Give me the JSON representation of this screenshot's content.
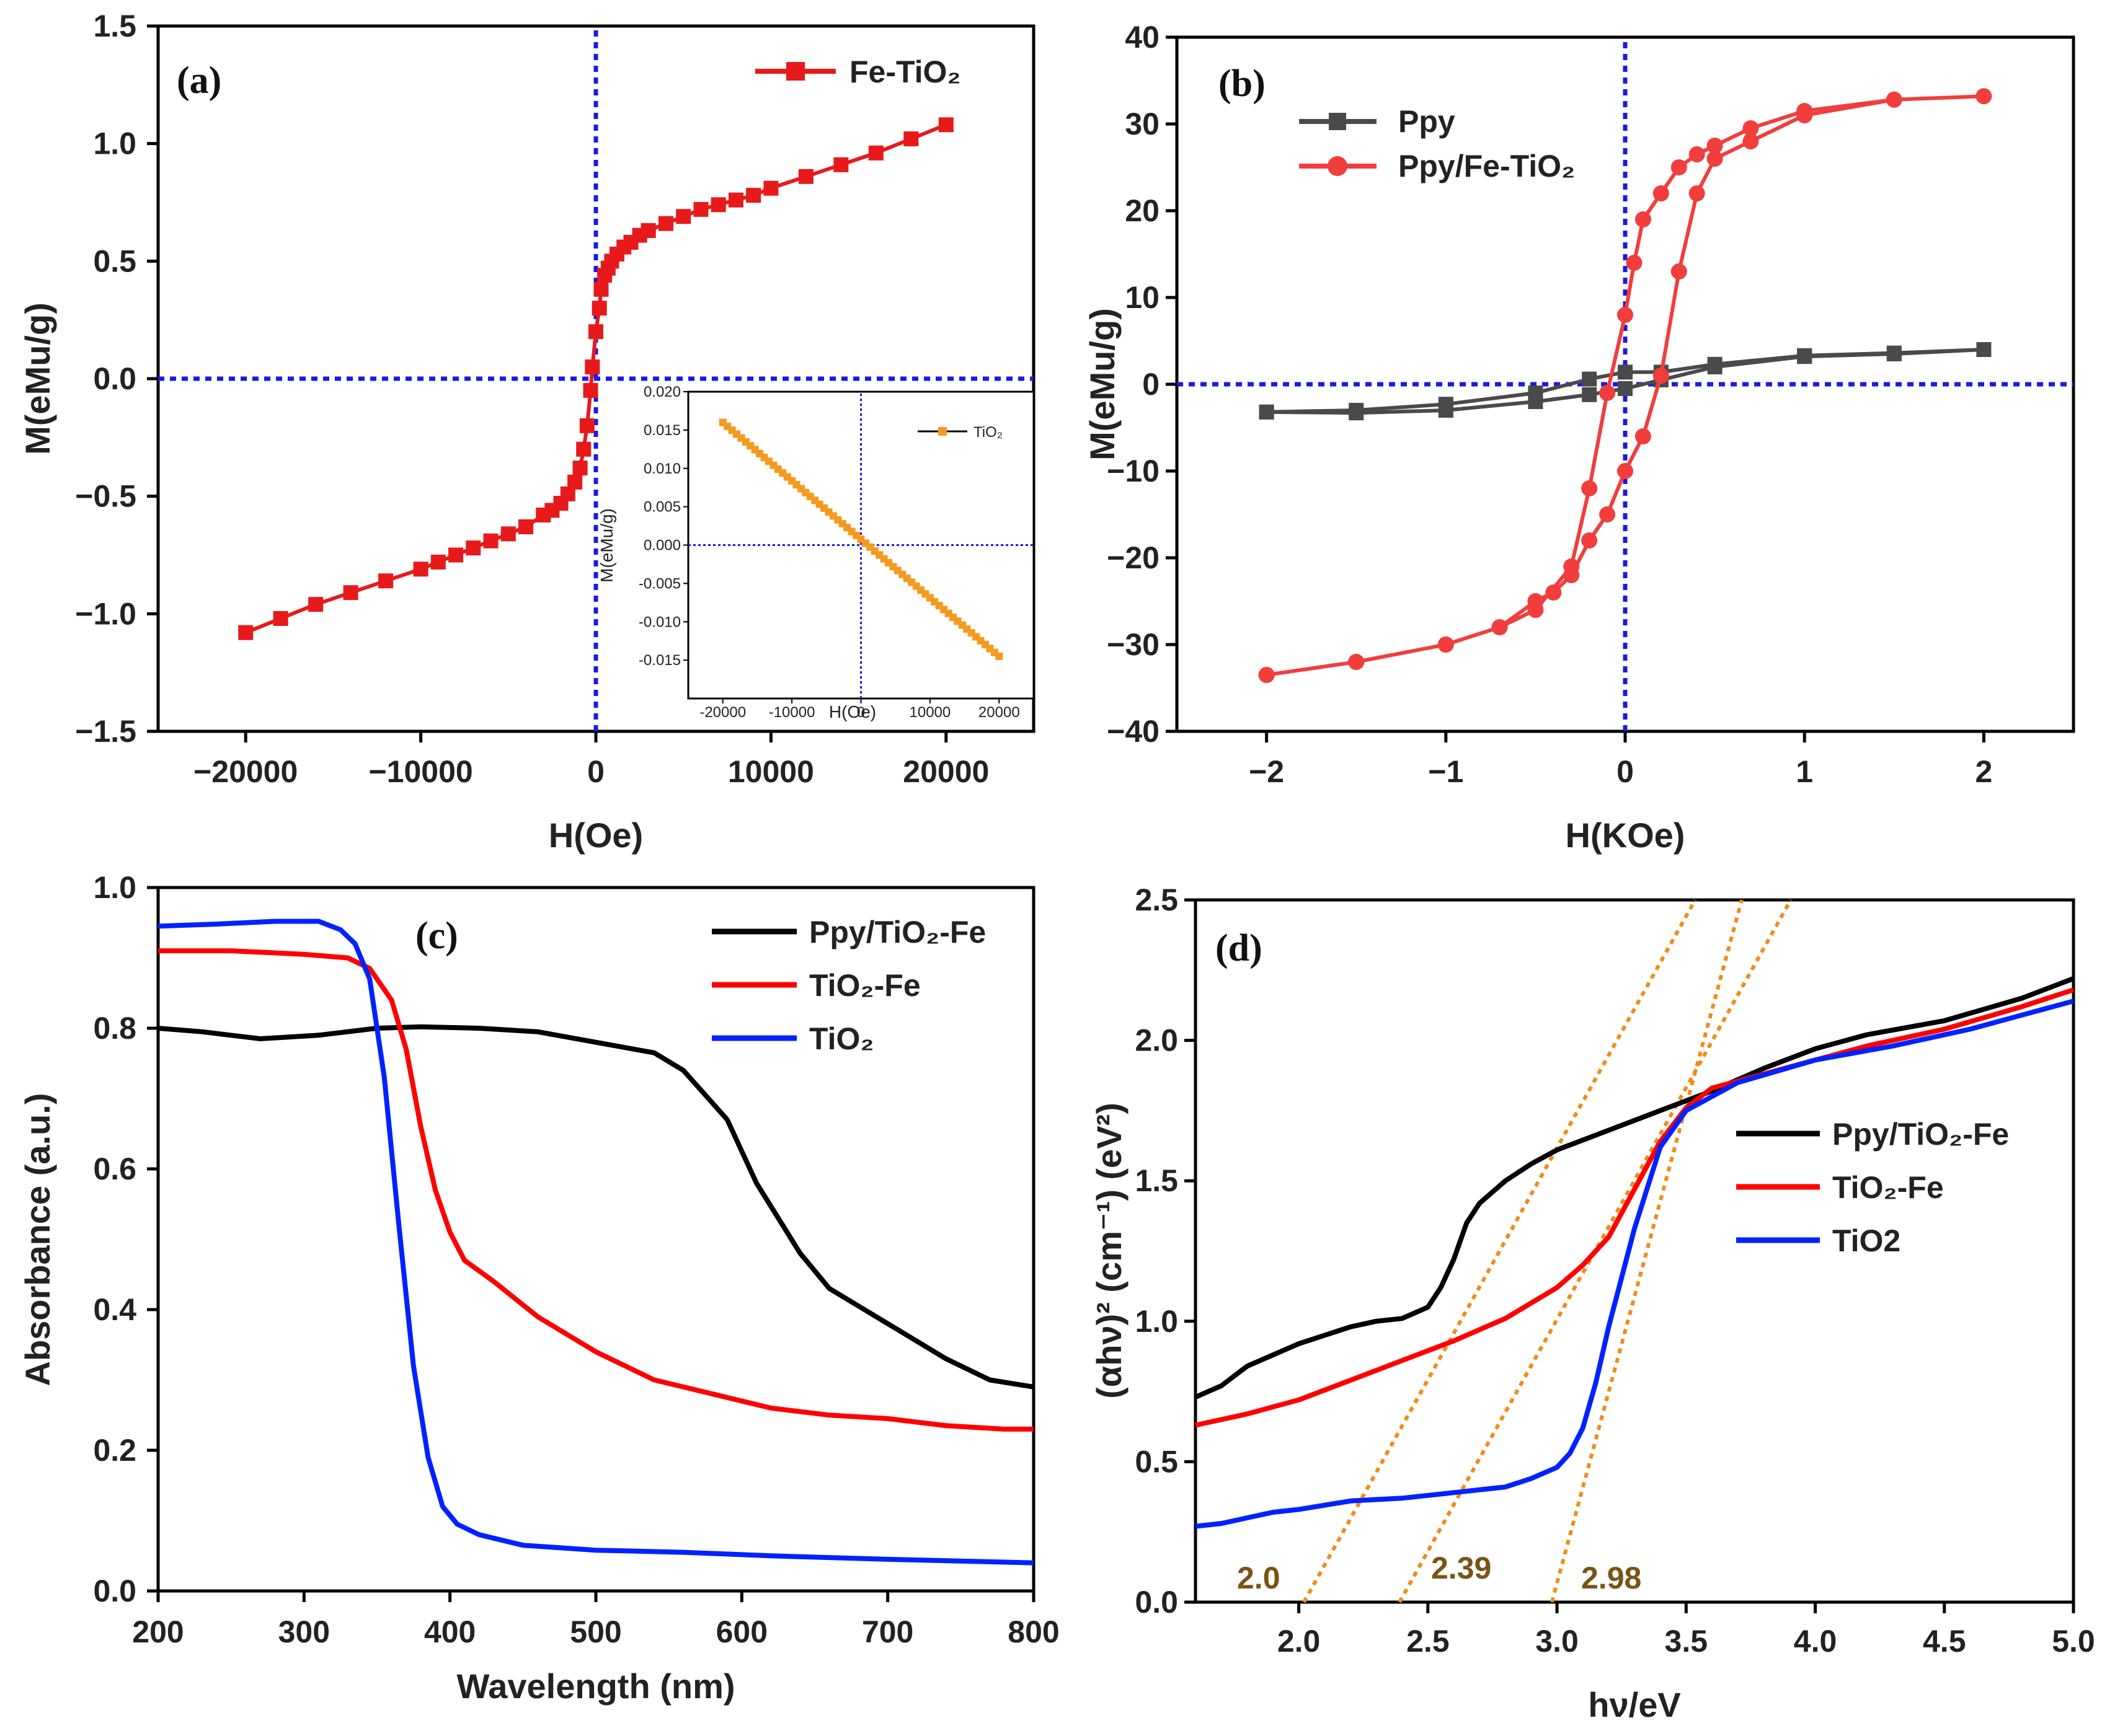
{
  "chart_data": [
    {
      "panel": "(a)",
      "type": "line",
      "xlabel": "H(Oe)",
      "ylabel": "M(eMu/g)",
      "xlim": [
        -25000,
        25000
      ],
      "ylim": [
        -1.5,
        1.5
      ],
      "xticks": [
        -20000,
        -10000,
        0,
        10000,
        20000
      ],
      "xtick_labels": [
        "−20000",
        "−10000",
        "0",
        "10000",
        "20000"
      ],
      "yticks": [
        -1.5,
        -1.0,
        -0.5,
        0.0,
        0.5,
        1.0,
        1.5
      ],
      "ytick_labels": [
        "−1.5",
        "−1.0",
        "−0.5",
        "0.0",
        "0.5",
        "1.0",
        "1.5"
      ],
      "legend_position": "top-right",
      "series": [
        {
          "name": "Fe-TiO₂",
          "color": "#e8191b",
          "marker": "square",
          "x": [
            -20000,
            -18000,
            -16000,
            -14000,
            -12000,
            -10000,
            -9000,
            -8000,
            -7000,
            -6000,
            -5000,
            -4000,
            -3000,
            -2500,
            -2000,
            -1600,
            -1200,
            -900,
            -700,
            -500,
            -300,
            -200,
            0,
            200,
            300,
            500,
            700,
            900,
            1200,
            1600,
            2000,
            2500,
            3000,
            4000,
            5000,
            6000,
            7000,
            8000,
            9000,
            10000,
            12000,
            14000,
            16000,
            18000,
            20000
          ],
          "y": [
            -1.08,
            -1.02,
            -0.96,
            -0.91,
            -0.86,
            -0.81,
            -0.78,
            -0.75,
            -0.72,
            -0.69,
            -0.66,
            -0.63,
            -0.58,
            -0.56,
            -0.53,
            -0.49,
            -0.44,
            -0.38,
            -0.3,
            -0.2,
            -0.05,
            0.05,
            0.2,
            0.3,
            0.38,
            0.44,
            0.47,
            0.5,
            0.53,
            0.56,
            0.58,
            0.61,
            0.63,
            0.66,
            0.69,
            0.72,
            0.74,
            0.76,
            0.78,
            0.81,
            0.86,
            0.91,
            0.96,
            1.02,
            1.08
          ]
        }
      ],
      "inset": {
        "xlabel": "H(Oe)",
        "ylabel": "M(eMu/g)",
        "xlim": [
          -25000,
          25000
        ],
        "ylim": [
          -0.02,
          0.02
        ],
        "xticks": [
          -20000,
          -10000,
          0,
          10000,
          20000
        ],
        "xtick_labels": [
          "-20000",
          "-10000",
          "0",
          "10000",
          "20000"
        ],
        "yticks": [
          -0.015,
          -0.01,
          -0.005,
          0.0,
          0.005,
          0.01,
          0.015,
          0.02
        ],
        "ytick_labels": [
          "-0.015",
          "-0.010",
          "-0.005",
          "0.000",
          "0.005",
          "0.010",
          "0.015",
          "0.020"
        ],
        "series": [
          {
            "name": "TiO₂",
            "color": "#f59a1f",
            "x": [
              -20000,
              20000
            ],
            "y": [
              0.016,
              -0.0145
            ]
          }
        ]
      }
    },
    {
      "panel": "(b)",
      "type": "line",
      "xlabel": "H(KOe)",
      "ylabel": "M(eMu/g)",
      "xlim": [
        -2.5,
        2.5
      ],
      "ylim": [
        -40,
        40
      ],
      "xticks": [
        -2,
        -1,
        0,
        1,
        2
      ],
      "xtick_labels": [
        "−2",
        "−1",
        "0",
        "1",
        "2"
      ],
      "yticks": [
        -40,
        -30,
        -20,
        -10,
        0,
        10,
        20,
        30,
        40
      ],
      "ytick_labels": [
        "−40",
        "−30",
        "−20",
        "−10",
        "0",
        "10",
        "20",
        "30",
        "40"
      ],
      "legend_position": "top-left",
      "series": [
        {
          "name": "Ppy",
          "color": "#4a4a4a",
          "marker": "square",
          "x": [
            -2.0,
            -1.5,
            -1.0,
            -0.5,
            -0.2,
            0.0,
            0.2,
            0.5,
            1.0,
            1.5,
            2.0,
            1.5,
            1.0,
            0.5,
            0.2,
            0.0,
            -0.2,
            -0.5,
            -1.0,
            -1.5,
            -2.0
          ],
          "y": [
            -3.2,
            -3.3,
            -3.0,
            -2.0,
            -1.2,
            -0.5,
            0.5,
            2.0,
            3.2,
            3.5,
            4.0,
            3.6,
            3.3,
            2.3,
            1.4,
            1.4,
            0.6,
            -1.0,
            -2.3,
            -3.0,
            -3.2
          ]
        },
        {
          "name": "Ppy/Fe-TiO₂",
          "color": "#f23d3d",
          "marker": "circle",
          "x": [
            -2.0,
            -1.5,
            -1.0,
            -0.7,
            -0.5,
            -0.3,
            -0.2,
            -0.1,
            0.0,
            0.05,
            0.1,
            0.2,
            0.3,
            0.4,
            0.5,
            0.7,
            1.0,
            1.5,
            2.0,
            1.5,
            1.0,
            0.7,
            0.5,
            0.4,
            0.3,
            0.2,
            0.1,
            0.0,
            -0.1,
            -0.2,
            -0.3,
            -0.4,
            -0.5,
            -0.7,
            -1.0,
            -1.5,
            -2.0
          ],
          "y": [
            -33.5,
            -32.0,
            -30.0,
            -28.0,
            -26.0,
            -21.0,
            -12.0,
            -1.0,
            8.0,
            14.0,
            19.0,
            22.0,
            25.0,
            26.5,
            27.5,
            29.5,
            31.5,
            32.8,
            33.2,
            32.8,
            31.0,
            28.0,
            26.0,
            22.0,
            13.0,
            1.0,
            -6.0,
            -10.0,
            -15.0,
            -18.0,
            -22.0,
            -24.0,
            -25.0,
            -28.0,
            -30.0,
            -32.0,
            -33.5
          ]
        }
      ]
    },
    {
      "panel": "(c)",
      "type": "line",
      "xlabel": "Wavelength (nm)",
      "ylabel": "Absorbance (a.u.)",
      "xlim": [
        200,
        800
      ],
      "ylim": [
        0.0,
        1.0
      ],
      "xticks": [
        200,
        300,
        400,
        500,
        600,
        700,
        800
      ],
      "xtick_labels": [
        "200",
        "300",
        "400",
        "500",
        "600",
        "700",
        "800"
      ],
      "yticks": [
        0.0,
        0.2,
        0.4,
        0.6,
        0.8,
        1.0
      ],
      "ytick_labels": [
        "0.0",
        "0.2",
        "0.4",
        "0.6",
        "0.8",
        "1.0"
      ],
      "legend_position": "top-right",
      "series": [
        {
          "name": "Ppy/TiO₂-Fe",
          "color": "#000000",
          "x": [
            200,
            230,
            270,
            310,
            350,
            380,
            420,
            460,
            500,
            540,
            560,
            590,
            610,
            640,
            660,
            700,
            740,
            770,
            800
          ],
          "y": [
            0.8,
            0.795,
            0.785,
            0.79,
            0.8,
            0.802,
            0.8,
            0.795,
            0.78,
            0.765,
            0.74,
            0.67,
            0.58,
            0.48,
            0.43,
            0.38,
            0.33,
            0.3,
            0.29
          ]
        },
        {
          "name": "TiO₂-Fe",
          "color": "#ff0000",
          "x": [
            200,
            250,
            300,
            330,
            345,
            360,
            370,
            380,
            390,
            400,
            410,
            430,
            460,
            500,
            540,
            580,
            620,
            660,
            700,
            740,
            780,
            800
          ],
          "y": [
            0.91,
            0.91,
            0.905,
            0.9,
            0.885,
            0.84,
            0.77,
            0.66,
            0.57,
            0.51,
            0.47,
            0.44,
            0.39,
            0.34,
            0.3,
            0.28,
            0.26,
            0.25,
            0.245,
            0.235,
            0.23,
            0.23
          ]
        },
        {
          "name": "TiO₂",
          "color": "#0022ff",
          "x": [
            200,
            240,
            280,
            310,
            325,
            335,
            345,
            355,
            365,
            375,
            385,
            395,
            405,
            420,
            450,
            500,
            560,
            620,
            700,
            800
          ],
          "y": [
            0.945,
            0.948,
            0.952,
            0.952,
            0.94,
            0.92,
            0.87,
            0.73,
            0.52,
            0.32,
            0.19,
            0.12,
            0.095,
            0.08,
            0.065,
            0.058,
            0.055,
            0.05,
            0.045,
            0.04
          ]
        }
      ]
    },
    {
      "panel": "(d)",
      "type": "line",
      "xlabel": "hν/eV",
      "ylabel": "(αhν)² (cm⁻¹) (eV²)",
      "xlim": [
        1.6,
        5.0
      ],
      "ylim": [
        0.0,
        2.5
      ],
      "xticks": [
        2.0,
        2.5,
        3.0,
        3.5,
        4.0,
        4.5,
        5.0
      ],
      "xtick_labels": [
        "2.0",
        "2.5",
        "3.0",
        "3.5",
        "4.0",
        "4.5",
        "5.0"
      ],
      "yticks": [
        0.0,
        0.5,
        1.0,
        1.5,
        2.0,
        2.5
      ],
      "ytick_labels": [
        "0.0",
        "0.5",
        "1.0",
        "1.5",
        "2.0",
        "2.5"
      ],
      "legend_position": "center-right",
      "series": [
        {
          "name": "Ppy/TiO₂-Fe",
          "color": "#000000",
          "x": [
            1.6,
            1.7,
            1.8,
            1.9,
            2.0,
            2.1,
            2.2,
            2.3,
            2.4,
            2.5,
            2.55,
            2.6,
            2.65,
            2.7,
            2.8,
            2.9,
            3.0,
            3.2,
            3.4,
            3.6,
            3.8,
            4.0,
            4.2,
            4.5,
            4.8,
            5.0
          ],
          "y": [
            0.73,
            0.77,
            0.84,
            0.88,
            0.92,
            0.95,
            0.98,
            1.0,
            1.01,
            1.05,
            1.12,
            1.22,
            1.35,
            1.42,
            1.5,
            1.56,
            1.61,
            1.68,
            1.75,
            1.82,
            1.9,
            1.97,
            2.02,
            2.07,
            2.15,
            2.22
          ]
        },
        {
          "name": "TiO₂-Fe",
          "color": "#ff0000",
          "x": [
            1.6,
            1.8,
            2.0,
            2.2,
            2.4,
            2.6,
            2.8,
            3.0,
            3.1,
            3.2,
            3.3,
            3.4,
            3.5,
            3.6,
            3.8,
            4.0,
            4.2,
            4.5,
            4.8,
            5.0
          ],
          "y": [
            0.63,
            0.67,
            0.72,
            0.79,
            0.86,
            0.93,
            1.01,
            1.12,
            1.2,
            1.3,
            1.47,
            1.64,
            1.76,
            1.83,
            1.88,
            1.93,
            1.98,
            2.04,
            2.12,
            2.18
          ]
        },
        {
          "name": "TiO2",
          "color": "#0022ff",
          "x": [
            1.6,
            1.7,
            1.8,
            1.9,
            2.0,
            2.2,
            2.4,
            2.6,
            2.8,
            2.9,
            3.0,
            3.05,
            3.1,
            3.15,
            3.2,
            3.3,
            3.4,
            3.5,
            3.7,
            4.0,
            4.3,
            4.6,
            4.8,
            5.0
          ],
          "y": [
            0.27,
            0.28,
            0.3,
            0.32,
            0.33,
            0.36,
            0.37,
            0.39,
            0.41,
            0.44,
            0.48,
            0.53,
            0.62,
            0.78,
            0.98,
            1.33,
            1.62,
            1.75,
            1.85,
            1.93,
            1.98,
            2.04,
            2.09,
            2.14
          ]
        }
      ],
      "tangent_lines": [
        {
          "label": "2.0",
          "x0": 2.02,
          "slope": 1.65
        },
        {
          "label": "2.39",
          "x0": 2.39,
          "slope": 1.65
        },
        {
          "label": "2.98",
          "x0": 2.98,
          "slope": 3.4
        }
      ]
    }
  ]
}
